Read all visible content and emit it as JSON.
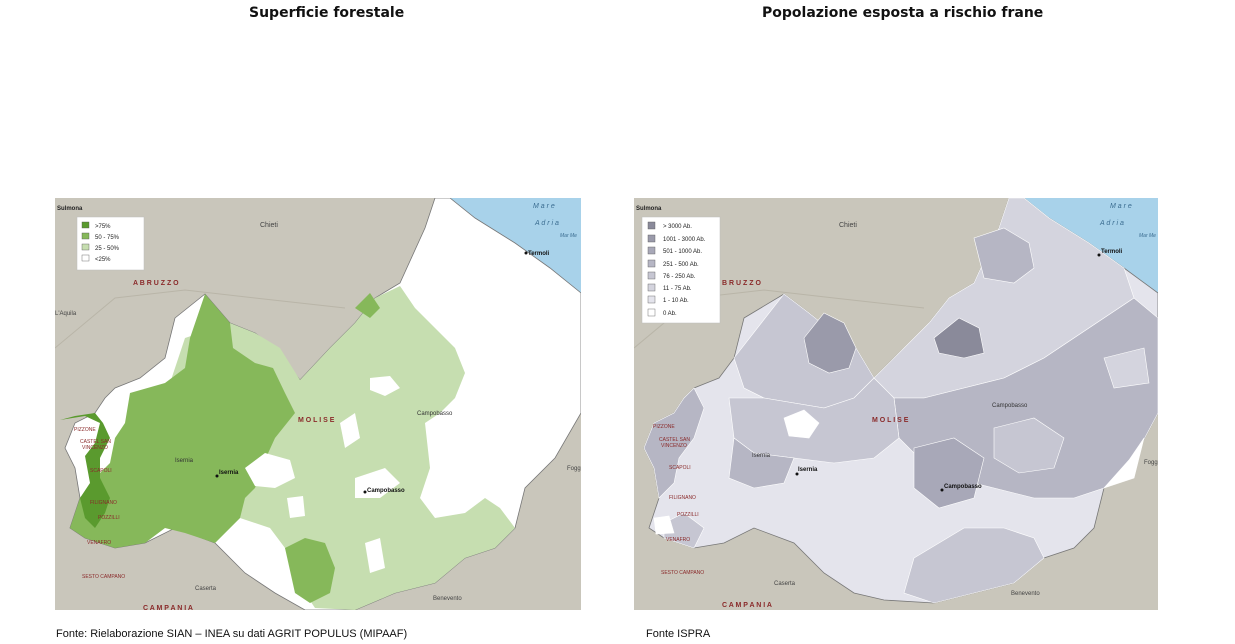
{
  "left": {
    "title": "Superficie forestale",
    "source": "Fonte: Rielaborazione SIAN – INEA su dati AGRIT POPULUS (MIPAAF)",
    "legend": [
      {
        "label": ">75%",
        "color": "#5a9a2e"
      },
      {
        "label": "50 - 75%",
        "color": "#86b85a"
      },
      {
        "label": "25 - 50%",
        "color": "#c6deb0"
      },
      {
        "label": "<25%",
        "color": "#ffffff"
      }
    ]
  },
  "right": {
    "title": "Popolazione esposta a rischio frane",
    "source": "Fonte ISPRA",
    "legend": [
      {
        "label": "> 3000 Ab.",
        "color": "#8a8a9a"
      },
      {
        "label": "1001 - 3000 Ab.",
        "color": "#9a9aaa"
      },
      {
        "label": "501 - 1000 Ab.",
        "color": "#a8a8b8"
      },
      {
        "label": "251 - 500 Ab.",
        "color": "#b6b6c4"
      },
      {
        "label": "76 - 250 Ab.",
        "color": "#c6c6d2"
      },
      {
        "label": "11 - 75 Ab.",
        "color": "#d4d4de"
      },
      {
        "label": "1 - 10 Ab.",
        "color": "#e4e4ec"
      },
      {
        "label": "0 Ab.",
        "color": "#ffffff"
      }
    ]
  },
  "labels": {
    "sulmona": "Sulmona",
    "chieti": "Chieti",
    "mare1": "M a r e",
    "mare2": "A d r i a",
    "mare3": "Mar Me",
    "termoli": "Termoli",
    "abruzzo": "A B R U Z Z O",
    "abruzzo_r": "B R U Z Z O",
    "aquila": "L'Aquila",
    "molise": "M O L I S E",
    "campobasso_prov": "Campobasso",
    "isernia_prov": "Isernia",
    "isernia": "Isernia",
    "campobasso": "Campobasso",
    "foggia": "Fogg",
    "caserta": "Caserta",
    "benevento": "Benevento",
    "campania": "C A M P A N I A",
    "pizzone": "PIZZONE",
    "castel1": "CASTEL SAN",
    "castel2": "VINCENZO",
    "scapoli": "SCAPOLI",
    "filignano": "FILIGNANO",
    "pozzilli": "POZZILLI",
    "venafro": "VENAFRO",
    "sesto": "SESTO CAMPANO"
  }
}
